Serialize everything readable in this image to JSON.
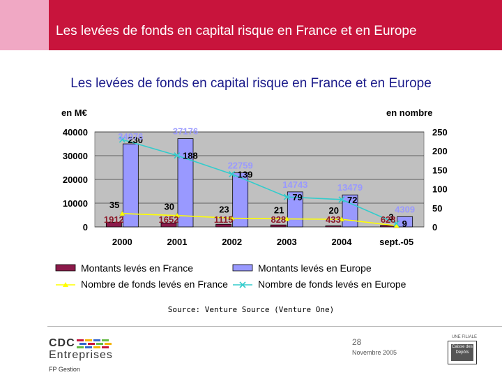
{
  "header": {
    "title": "Les levées de fonds en capital risque en France et en Europe"
  },
  "source": "Source: Venture Source (Venture One)",
  "footer": {
    "page": "28",
    "date": "Novembre 2005",
    "logo_line1": "CDC",
    "logo_line2": "Entreprises",
    "logo_line3": "FP Gestion",
    "filiale": "UNE FILIALE",
    "caisse": "Caisse des Dépôts"
  },
  "colors": {
    "header_red": "#c8143c",
    "header_pink": "#f0a8c4",
    "france_bar": "#8b1a4a",
    "europe_bar": "#9999ff",
    "france_line": "#ffff00",
    "europe_line": "#33cccc",
    "plot_bg": "#c0c0c0"
  },
  "chart_data": {
    "type": "bar",
    "title": "Les levées de fonds en capital risque en France et en Europe",
    "ylabel": "en M€",
    "y2label": "en nombre",
    "categories": [
      "2000",
      "2001",
      "2002",
      "2003",
      "2004",
      "sept.-05"
    ],
    "ylim": [
      0,
      40000
    ],
    "y2lim": [
      0,
      250
    ],
    "yticks": [
      0,
      10000,
      20000,
      30000,
      40000
    ],
    "y2ticks": [
      0,
      50,
      100,
      150,
      200,
      250
    ],
    "grid": true,
    "legend_position": "bottom",
    "series": [
      {
        "name": "Montants levés en France",
        "kind": "bar",
        "axis": "left",
        "values": [
          1912,
          1652,
          1115,
          828,
          433,
          628
        ],
        "labels": [
          "1912",
          "1652",
          "1115",
          "828",
          "433",
          "628"
        ]
      },
      {
        "name": "Montants levés en Europe",
        "kind": "bar",
        "axis": "left",
        "values": [
          34976,
          37176,
          22759,
          14743,
          13479,
          4309
        ],
        "labels": [
          "34976",
          "37176",
          "22759",
          "14743",
          "13479",
          "4309"
        ]
      },
      {
        "name": "Nombre de fonds levés en France",
        "kind": "line",
        "axis": "right",
        "values": [
          35,
          30,
          23,
          21,
          20,
          3
        ],
        "labels": [
          "35",
          "30",
          "23",
          "21",
          "20",
          "3"
        ]
      },
      {
        "name": "Nombre de fonds levés en Europe",
        "kind": "line",
        "axis": "right",
        "values": [
          230,
          188,
          139,
          79,
          72,
          9
        ],
        "labels": [
          "230",
          "188",
          "139",
          "79",
          "72",
          "9"
        ]
      }
    ]
  }
}
